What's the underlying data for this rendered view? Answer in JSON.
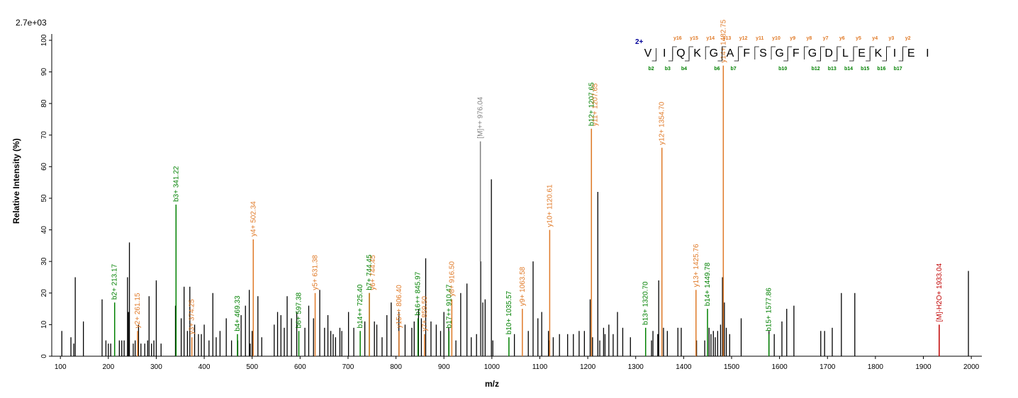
{
  "chart_data": {
    "type": "bar",
    "title": "",
    "intensity_scale_label": "2.7e+03",
    "xlabel": "m/z",
    "ylabel": "Relative   Intensity (%)",
    "xlim": [
      82,
      2022
    ],
    "ylim": [
      0,
      102
    ],
    "x_ticks": [
      100,
      200,
      300,
      400,
      500,
      600,
      700,
      800,
      900,
      1000,
      1100,
      1200,
      1300,
      1400,
      1500,
      1600,
      1700,
      1800,
      1900,
      2000
    ],
    "y_ticks": [
      0,
      10,
      20,
      30,
      40,
      50,
      60,
      70,
      80,
      90,
      100
    ],
    "colors": {
      "b": "#008000",
      "y": "#e07a28",
      "precursor": "#c00000",
      "unassigned": "#000000",
      "parent": "#808080",
      "charge": "#000099"
    },
    "unassigned_peaks": [
      [
        103,
        8
      ],
      [
        122,
        6
      ],
      [
        128,
        4
      ],
      [
        131,
        25
      ],
      [
        148,
        11
      ],
      [
        187,
        18
      ],
      [
        195,
        5
      ],
      [
        200,
        4
      ],
      [
        205,
        4
      ],
      [
        223,
        5
      ],
      [
        228,
        5
      ],
      [
        233,
        5
      ],
      [
        240,
        25
      ],
      [
        242,
        14
      ],
      [
        244,
        36
      ],
      [
        252,
        4
      ],
      [
        256,
        5
      ],
      [
        263,
        10
      ],
      [
        268,
        4
      ],
      [
        276,
        4
      ],
      [
        282,
        5
      ],
      [
        285,
        19
      ],
      [
        290,
        4
      ],
      [
        295,
        5
      ],
      [
        300,
        24
      ],
      [
        310,
        4
      ],
      [
        340,
        16
      ],
      [
        352,
        12
      ],
      [
        358,
        22
      ],
      [
        365,
        8
      ],
      [
        370,
        22
      ],
      [
        380,
        10
      ],
      [
        388,
        7
      ],
      [
        394,
        7
      ],
      [
        400,
        10
      ],
      [
        410,
        5
      ],
      [
        418,
        20
      ],
      [
        425,
        6
      ],
      [
        433,
        8
      ],
      [
        446,
        12
      ],
      [
        457,
        5
      ],
      [
        470,
        5
      ],
      [
        477,
        13
      ],
      [
        486,
        16
      ],
      [
        494,
        21
      ],
      [
        496,
        4
      ],
      [
        500,
        8
      ],
      [
        512,
        19
      ],
      [
        520,
        6
      ],
      [
        546,
        10
      ],
      [
        553,
        14
      ],
      [
        560,
        13
      ],
      [
        567,
        9
      ],
      [
        573,
        19
      ],
      [
        582,
        12
      ],
      [
        593,
        14
      ],
      [
        610,
        9
      ],
      [
        618,
        16
      ],
      [
        628,
        12
      ],
      [
        641,
        21
      ],
      [
        651,
        9
      ],
      [
        658,
        13
      ],
      [
        664,
        8
      ],
      [
        669,
        7
      ],
      [
        674,
        6
      ],
      [
        683,
        9
      ],
      [
        687,
        8
      ],
      [
        701,
        14
      ],
      [
        712,
        9
      ],
      [
        735,
        11
      ],
      [
        755,
        11
      ],
      [
        760,
        10
      ],
      [
        771,
        6
      ],
      [
        781,
        13
      ],
      [
        790,
        17
      ],
      [
        806,
        14
      ],
      [
        819,
        10
      ],
      [
        833,
        9
      ],
      [
        838,
        11
      ],
      [
        847,
        15
      ],
      [
        853,
        12
      ],
      [
        862,
        31
      ],
      [
        873,
        11
      ],
      [
        884,
        10
      ],
      [
        893,
        8
      ],
      [
        900,
        14
      ],
      [
        910,
        9
      ],
      [
        925,
        5
      ],
      [
        935,
        20
      ],
      [
        948,
        23
      ],
      [
        957,
        6
      ],
      [
        968,
        7
      ],
      [
        977,
        30
      ],
      [
        981,
        17
      ],
      [
        986,
        18
      ],
      [
        999,
        56
      ],
      [
        1002,
        5
      ],
      [
        1047,
        7
      ],
      [
        1076,
        8
      ],
      [
        1086,
        30
      ],
      [
        1096,
        12
      ],
      [
        1104,
        14
      ],
      [
        1118,
        8
      ],
      [
        1120,
        5
      ],
      [
        1128,
        6
      ],
      [
        1141,
        7
      ],
      [
        1158,
        7
      ],
      [
        1170,
        7
      ],
      [
        1182,
        8
      ],
      [
        1193,
        8
      ],
      [
        1205,
        18
      ],
      [
        1210,
        6
      ],
      [
        1221,
        52
      ],
      [
        1225,
        5
      ],
      [
        1233,
        9
      ],
      [
        1236,
        7
      ],
      [
        1244,
        10
      ],
      [
        1253,
        7
      ],
      [
        1262,
        14
      ],
      [
        1273,
        9
      ],
      [
        1289,
        6
      ],
      [
        1333,
        5
      ],
      [
        1336,
        8
      ],
      [
        1346,
        7
      ],
      [
        1348,
        24
      ],
      [
        1358,
        9
      ],
      [
        1366,
        8
      ],
      [
        1388,
        9
      ],
      [
        1395,
        9
      ],
      [
        1427,
        5
      ],
      [
        1444,
        5
      ],
      [
        1453,
        9
      ],
      [
        1457,
        7
      ],
      [
        1462,
        8
      ],
      [
        1466,
        6
      ],
      [
        1471,
        8
      ],
      [
        1477,
        10
      ],
      [
        1481,
        25
      ],
      [
        1485,
        17
      ],
      [
        1489,
        9
      ],
      [
        1496,
        7
      ],
      [
        1520,
        12
      ],
      [
        1578,
        8
      ],
      [
        1589,
        7
      ],
      [
        1605,
        11
      ],
      [
        1615,
        15
      ],
      [
        1630,
        16
      ],
      [
        1686,
        8
      ],
      [
        1694,
        8
      ],
      [
        1710,
        9
      ],
      [
        1729,
        20
      ],
      [
        1757,
        20
      ],
      [
        1994,
        27
      ]
    ],
    "labeled_peaks": [
      {
        "mz": 213.17,
        "intensity": 17,
        "label": "b2+ 213.17",
        "ion": "b"
      },
      {
        "mz": 261.15,
        "intensity": 8,
        "label": "y2+ 261.15",
        "ion": "y"
      },
      {
        "mz": 341.22,
        "intensity": 48,
        "label": "b3+ 341.22",
        "ion": "b"
      },
      {
        "mz": 374.25,
        "intensity": 6,
        "label": "y3+ 374.25",
        "ion": "y"
      },
      {
        "mz": 469.33,
        "intensity": 7,
        "label": "b4+ 469.33",
        "ion": "b"
      },
      {
        "mz": 502.34,
        "intensity": 37,
        "label": "y4+ 502.34",
        "ion": "y"
      },
      {
        "mz": 597.38,
        "intensity": 8,
        "label": "b6+ 597.38",
        "ion": "b"
      },
      {
        "mz": 631.38,
        "intensity": 20,
        "label": "y5+ 631.38",
        "ion": "y"
      },
      {
        "mz": 725.4,
        "intensity": 8,
        "label": "b14++ 725.40",
        "ion": "b"
      },
      {
        "mz": 744.45,
        "intensity": 20,
        "label": "b7+ 744.45",
        "ion": "b"
      },
      {
        "mz": 744.45,
        "intensity": 20,
        "label": "y6+ 744.45",
        "ion": "y"
      },
      {
        "mz": 806.4,
        "intensity": 8,
        "label": "y15++ 806.40",
        "ion": "y"
      },
      {
        "mz": 845.97,
        "intensity": 12,
        "label": "b16++ 845.97",
        "ion": "b"
      },
      {
        "mz": 859.5,
        "intensity": 7,
        "label": "y7+ 859.50",
        "ion": "y"
      },
      {
        "mz": 910.47,
        "intensity": 8,
        "label": "b17++ 910.47",
        "ion": "b"
      },
      {
        "mz": 916.5,
        "intensity": 18,
        "label": "y8+ 916.50",
        "ion": "y"
      },
      {
        "mz": 976.04,
        "intensity": 68,
        "label": "[M]++ 976.04",
        "ion": "parent"
      },
      {
        "mz": 1035.57,
        "intensity": 6,
        "label": "b10+ 1035.57",
        "ion": "b"
      },
      {
        "mz": 1063.58,
        "intensity": 15,
        "label": "y9+ 1063.58",
        "ion": "y"
      },
      {
        "mz": 1120.61,
        "intensity": 40,
        "label": "y10+ 1120.61",
        "ion": "y"
      },
      {
        "mz": 1207.65,
        "intensity": 72,
        "label": "b12+ 1207.65",
        "ion": "b"
      },
      {
        "mz": 1207.65,
        "intensity": 72,
        "label": "y11+ 1207.65",
        "ion": "y"
      },
      {
        "mz": 1320.7,
        "intensity": 9,
        "label": "b13+ 1320.70",
        "ion": "b"
      },
      {
        "mz": 1354.7,
        "intensity": 66,
        "label": "y12+ 1354.70",
        "ion": "y"
      },
      {
        "mz": 1425.76,
        "intensity": 21,
        "label": "y13+ 1425.76",
        "ion": "y"
      },
      {
        "mz": 1449.78,
        "intensity": 15,
        "label": "b14+ 1449.78",
        "ion": "b"
      },
      {
        "mz": 1482.75,
        "intensity": 92,
        "label": "y14+ 1482.75",
        "ion": "y"
      },
      {
        "mz": 1577.86,
        "intensity": 7,
        "label": "b15+ 1577.86",
        "ion": "b"
      },
      {
        "mz": 1933.04,
        "intensity": 10,
        "label": "[M]-H2O+ 1933.04",
        "ion": "precursor"
      }
    ],
    "sequence": {
      "charge": "2+",
      "residues": [
        "V",
        "I",
        "Q",
        "K",
        "G",
        "A",
        "F",
        "S",
        "G",
        "F",
        "G",
        "D",
        "L",
        "E",
        "K",
        "I",
        "E",
        "I"
      ],
      "b_ions": [
        {
          "after": 1,
          "label": "b2"
        },
        {
          "after": 2,
          "label": "b3"
        },
        {
          "after": 3,
          "label": "b4"
        },
        {
          "after": 5,
          "label": "b6"
        },
        {
          "after": 6,
          "label": "b7"
        },
        {
          "after": 9,
          "label": "b10"
        },
        {
          "after": 11,
          "label": "b12"
        },
        {
          "after": 12,
          "label": "b13"
        },
        {
          "after": 13,
          "label": "b14"
        },
        {
          "after": 14,
          "label": "b15"
        },
        {
          "after": 15,
          "label": "b16"
        },
        {
          "after": 16,
          "label": "b17"
        }
      ],
      "y_ions": [
        {
          "after": 2,
          "label": "y16"
        },
        {
          "after": 3,
          "label": "y15"
        },
        {
          "after": 4,
          "label": "y14"
        },
        {
          "after": 5,
          "label": "y13"
        },
        {
          "after": 6,
          "label": "y12"
        },
        {
          "after": 7,
          "label": "y11"
        },
        {
          "after": 8,
          "label": "y10"
        },
        {
          "after": 9,
          "label": "y9"
        },
        {
          "after": 10,
          "label": "y8"
        },
        {
          "after": 11,
          "label": "y7"
        },
        {
          "after": 12,
          "label": "y6"
        },
        {
          "after": 13,
          "label": "y5"
        },
        {
          "after": 14,
          "label": "y4"
        },
        {
          "after": 15,
          "label": "y3"
        },
        {
          "after": 16,
          "label": "y2"
        }
      ]
    }
  }
}
